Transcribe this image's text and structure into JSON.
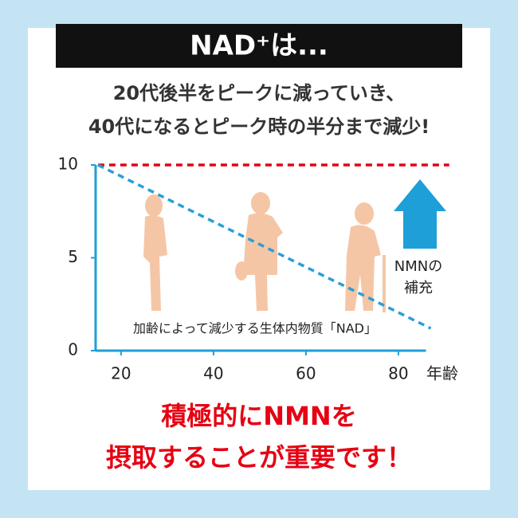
{
  "chart_data": {
    "type": "line",
    "title": "NAD⁺は...",
    "subtitle": [
      "20代後半をピークに減っていき、",
      "40代になるとピーク時の半分まで減少!"
    ],
    "x_label": "年齢",
    "xlim": [
      14.5,
      92
    ],
    "xticks": [
      20,
      40,
      60,
      80
    ],
    "ylim": [
      0,
      10
    ],
    "yticks": [
      0,
      5,
      10
    ],
    "grid": false,
    "series": [
      {
        "color": "#e60012",
        "x": [
          15,
          91
        ],
        "values": [
          10,
          10
        ]
      },
      {
        "color": "#2a9fd6",
        "x": [
          15,
          87
        ],
        "values": [
          10,
          1.2
        ]
      }
    ],
    "annotations": {
      "supplement": [
        "NMNの",
        "補充"
      ],
      "decline": "加齢によって減少する生体内物質「NAD」"
    },
    "message": [
      "積極的にNMNを",
      "摂取することが重要です！"
    ]
  }
}
